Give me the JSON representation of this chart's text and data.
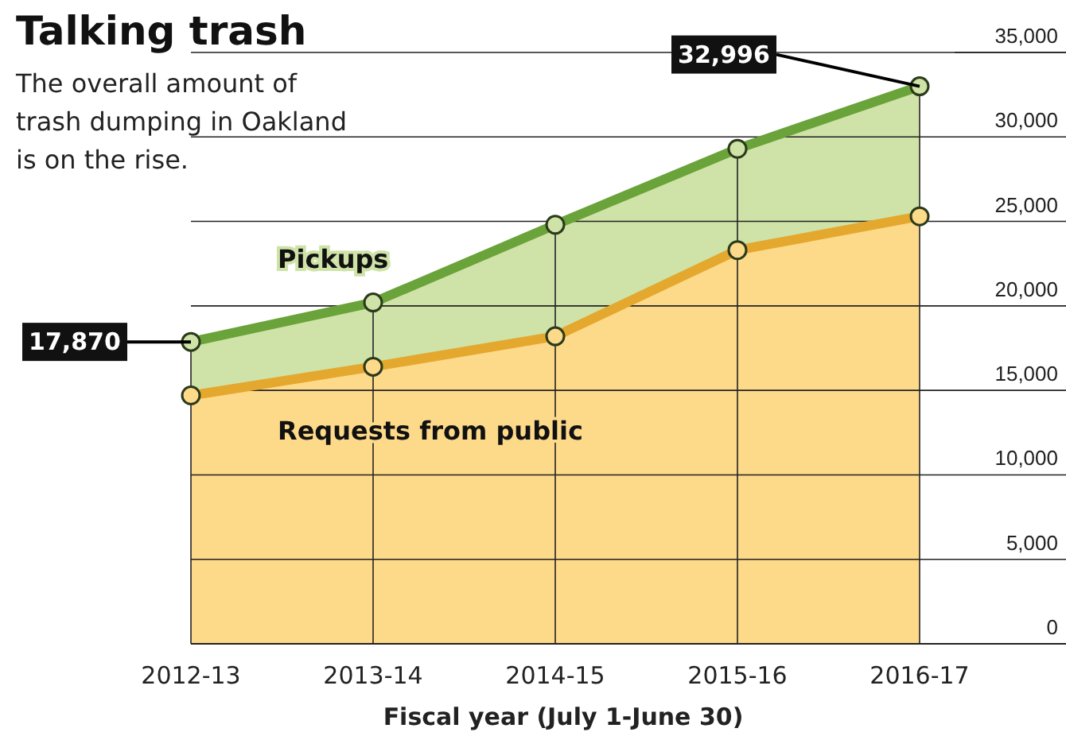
{
  "chart_data": {
    "type": "area",
    "title": "Talking trash",
    "subtitle": "The overall amount of trash dumping in Oakland is on the rise.",
    "xlabel": "Fiscal year (July 1-June 30)",
    "categories": [
      "2012-13",
      "2013-14",
      "2014-15",
      "2015-16",
      "2016-17"
    ],
    "series": [
      {
        "name": "Requests from public",
        "color": "#e5a82e",
        "values": [
          14700,
          16400,
          18200,
          23300,
          25300
        ]
      },
      {
        "name": "Pickups",
        "color": "#6aa33a",
        "values": [
          17870,
          20200,
          24800,
          29300,
          32996
        ],
        "value_labels": [
          "17,870",
          null,
          null,
          null,
          "32,996"
        ]
      }
    ],
    "ylim": [
      0,
      35000
    ],
    "yticks": [
      0,
      {
        "value": 5000,
        "label": "5,000"
      },
      {
        "value": 10000,
        "label": "10,000"
      },
      {
        "value": 15000,
        "label": "15,000"
      },
      {
        "value": 20000,
        "label": "20,000"
      },
      {
        "value": 25000,
        "label": "25,000"
      },
      {
        "value": 30000,
        "label": "30,000"
      },
      {
        "value": 35000,
        "label": "35,000"
      }
    ],
    "grid": true,
    "marker": "circle"
  }
}
